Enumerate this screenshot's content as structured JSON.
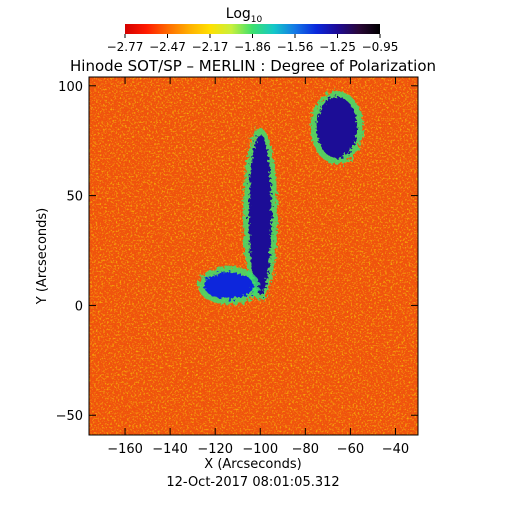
{
  "colorbar": {
    "title_main": "Log",
    "title_sub": "10",
    "ticks": [
      "-2.77",
      "-2.47",
      "-2.17",
      "-1.86",
      "-1.56",
      "-1.25",
      "-0.95"
    ],
    "colors": [
      "#d40000",
      "#ff1a00",
      "#ff6a00",
      "#ffae00",
      "#ffe000",
      "#c8f03c",
      "#3ce06e",
      "#14c8c8",
      "#1478e6",
      "#0a28dc",
      "#1e0a96",
      "#2a0838",
      "#000000"
    ]
  },
  "chart_data": {
    "type": "heatmap",
    "title": "Hinode SOT/SP – MERLIN : Degree of Polarization",
    "xlabel": "X (Arcseconds)",
    "ylabel": "Y (Arcseconds)",
    "xlim": [
      -176,
      -30
    ],
    "ylim": [
      -59,
      104
    ],
    "xticks": [
      -160,
      -140,
      -120,
      -100,
      -80,
      -60,
      -40
    ],
    "yticks": [
      -50,
      0,
      50,
      100
    ],
    "value_scale": "log10",
    "value_range": [
      -2.77,
      -0.95
    ],
    "background_level": -2.6,
    "features": [
      {
        "description": "central vertical structure",
        "x": [
          -105,
          -95
        ],
        "y": [
          5,
          78
        ],
        "level": -1.3
      },
      {
        "description": "upper-right patch",
        "x": [
          -75,
          -57
        ],
        "y": [
          67,
          95
        ],
        "level": -1.2
      },
      {
        "description": "lower-left arm",
        "x": [
          -125,
          -103
        ],
        "y": [
          3,
          15
        ],
        "level": -1.4
      }
    ]
  },
  "footer": {
    "timestamp": "12-Oct-2017 08:01:05.312"
  }
}
